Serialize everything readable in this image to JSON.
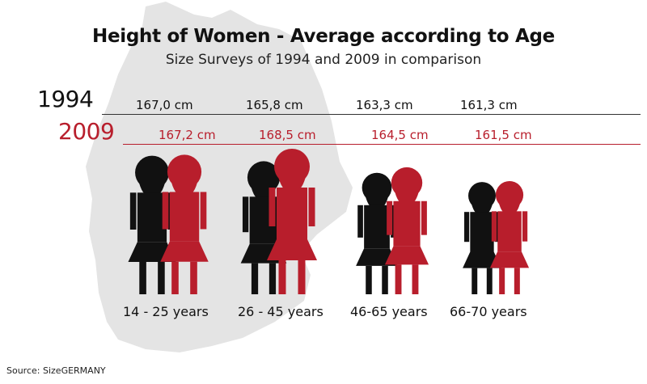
{
  "title": "Height of Women - Average according to Age",
  "subtitle": "Size Surveys of 1994 and 2009 in comparison",
  "source": "Source: SizeGERMANY",
  "colors": {
    "y1994": "#111111",
    "y2009": "#b81e2c",
    "map": "#e4e4e4"
  },
  "chart_data": {
    "type": "bar",
    "categories": [
      "14 - 25 years",
      "26 - 45 years",
      "46-65 years",
      "66-70 years"
    ],
    "series": [
      {
        "name": "1994",
        "values": [
          167.0,
          165.8,
          163.3,
          161.3
        ],
        "labels": [
          "167,0 cm",
          "165,8 cm",
          "163,3 cm",
          "161,3 cm"
        ]
      },
      {
        "name": "2009",
        "values": [
          167.2,
          168.5,
          164.5,
          161.5
        ],
        "labels": [
          "167,2 cm",
          "168,5 cm",
          "164,5 cm",
          "161,5 cm"
        ]
      }
    ],
    "unit": "cm"
  }
}
